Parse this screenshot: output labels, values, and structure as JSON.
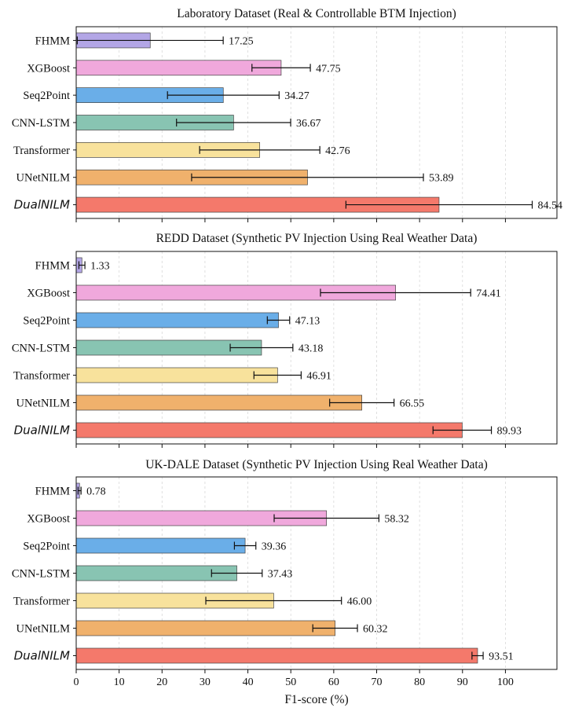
{
  "chart_data": [
    {
      "type": "bar",
      "orientation": "horizontal",
      "title": "Laboratory Dataset (Real & Controllable BTM Injection)",
      "categories": [
        "FHMM",
        "XGBoost",
        "Seq2Point",
        "CNN-LSTM",
        "Transformer",
        "UNetNILM",
        "DualNILM"
      ],
      "values": [
        17.25,
        47.75,
        34.27,
        36.67,
        42.76,
        53.89,
        84.54
      ],
      "value_labels": [
        "17.25",
        "47.75",
        "34.27",
        "36.67",
        "42.76",
        "53.89",
        "84.54"
      ],
      "error": [
        17.0,
        6.8,
        13.0,
        13.3,
        14.0,
        27.0,
        21.7
      ],
      "xlim": [
        0,
        112
      ],
      "grid": "x"
    },
    {
      "type": "bar",
      "orientation": "horizontal",
      "title": "REDD Dataset (Synthetic PV Injection Using Real Weather Data)",
      "categories": [
        "FHMM",
        "XGBoost",
        "Seq2Point",
        "CNN-LSTM",
        "Transformer",
        "UNetNILM",
        "DualNILM"
      ],
      "values": [
        1.33,
        74.41,
        47.13,
        43.18,
        46.91,
        66.55,
        89.93
      ],
      "value_labels": [
        "1.33",
        "74.41",
        "47.13",
        "43.18",
        "46.91",
        "66.55",
        "89.93"
      ],
      "error": [
        0.7,
        17.5,
        2.6,
        7.3,
        5.5,
        7.5,
        6.8
      ],
      "xlim": [
        0,
        112
      ],
      "grid": "x"
    },
    {
      "type": "bar",
      "orientation": "horizontal",
      "title": "UK-DALE Dataset (Synthetic PV Injection Using Real Weather Data)",
      "categories": [
        "FHMM",
        "XGBoost",
        "Seq2Point",
        "CNN-LSTM",
        "Transformer",
        "UNetNILM",
        "DualNILM"
      ],
      "values": [
        0.78,
        58.32,
        39.36,
        37.43,
        46.0,
        60.32,
        93.51
      ],
      "value_labels": [
        "0.78",
        "58.32",
        "39.36",
        "37.43",
        "46.00",
        "60.32",
        "93.51"
      ],
      "error": [
        0.35,
        12.2,
        2.5,
        5.9,
        15.8,
        5.2,
        1.3
      ],
      "xlim": [
        0,
        112
      ],
      "xticks": [
        0,
        10,
        20,
        30,
        40,
        50,
        60,
        70,
        80,
        90,
        100
      ],
      "xticklabels": [
        "0",
        "10",
        "20",
        "30",
        "40",
        "50",
        "60",
        "70",
        "80",
        "90",
        "100"
      ],
      "xlabel": "F1-score (%)",
      "grid": "x"
    }
  ],
  "colors": {
    "FHMM": "#b3a6e6",
    "XGBoost": "#f0a8dc",
    "Seq2Point": "#6aaee8",
    "CNN-LSTM": "#88c4b2",
    "Transformer": "#f8e29c",
    "UNetNILM": "#f0b16c",
    "DualNILM": "#f4796b",
    "bar_edge": "#444444",
    "grid": "#d8d8d8"
  }
}
